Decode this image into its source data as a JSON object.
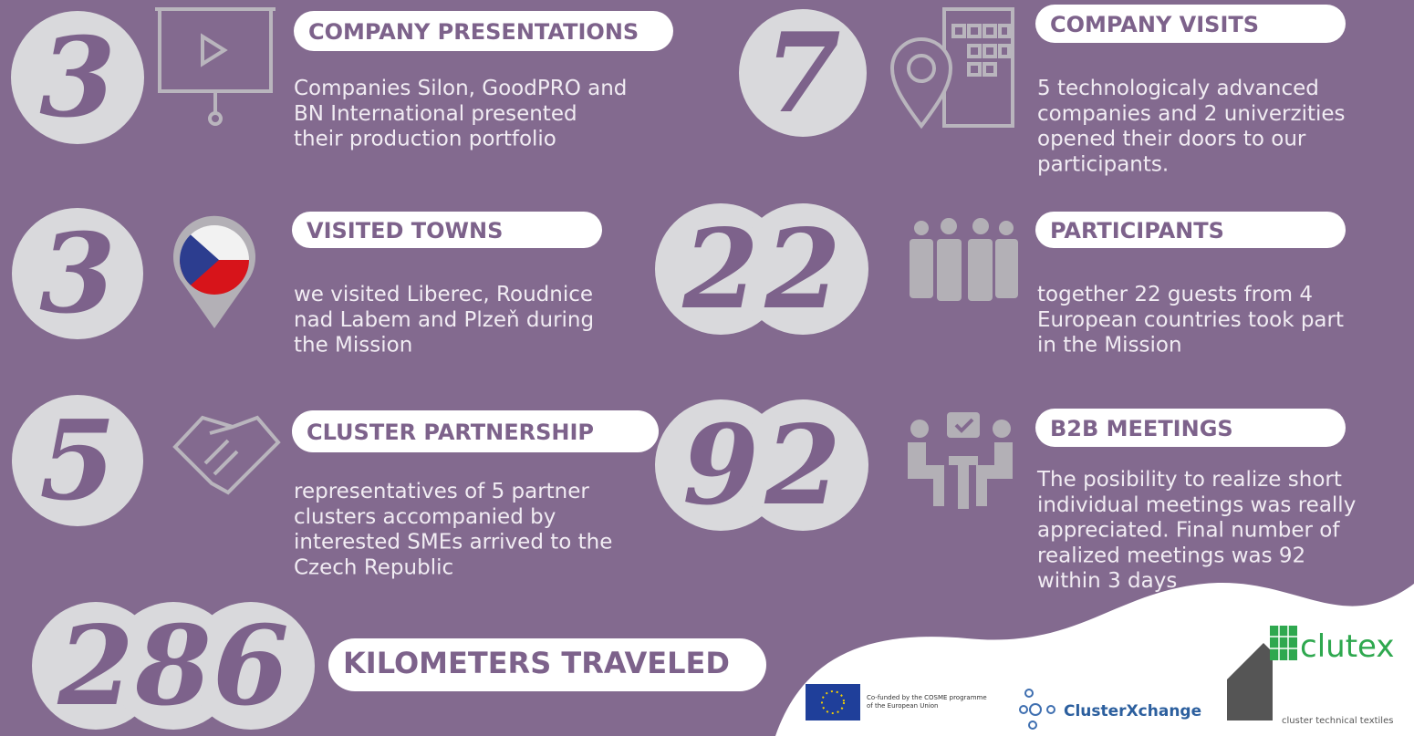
{
  "stats": [
    {
      "number": "3",
      "title": "COMPANY PRESENTATIONS",
      "lines": [
        "Companies Silon, GoodPRO and",
        "BN International presented",
        "their production portfolio"
      ]
    },
    {
      "number": "7",
      "title": "COMPANY VISITS",
      "lines": [
        "5 technologicaly advanced",
        "companies and 2 univerzities",
        "opened their doors to our",
        "participants."
      ]
    },
    {
      "number": "3",
      "title": "VISITED TOWNS",
      "lines": [
        "we visited Liberec, Roudnice",
        "nad Labem and Plzeň during",
        "the Mission"
      ]
    },
    {
      "number": "22",
      "title": "PARTICIPANTS",
      "lines": [
        "together 22 guests from 4",
        "European countries took part",
        "in the Mission"
      ]
    },
    {
      "number": "5",
      "title": "CLUSTER PARTNERSHIP",
      "lines": [
        "representatives of 5 partner",
        "clusters accompanied by",
        "interested SMEs arrived to the",
        "Czech Republic"
      ]
    },
    {
      "number": "92",
      "title": "B2B MEETINGS",
      "lines": [
        "The posibility to realize short",
        "individual meetings was really",
        "appreciated. Final number of",
        "realized meetings was 92",
        "within 3 days"
      ]
    },
    {
      "number": "286",
      "title": "KILOMETERS TRAVELED",
      "lines": []
    }
  ],
  "footer": {
    "eu_text": [
      "Co-funded by the COSME programme",
      "of the European Union"
    ],
    "clusterxchange": "ClusterXchange",
    "clutex": "clutex",
    "clutex_tagline": "cluster technical textiles"
  }
}
